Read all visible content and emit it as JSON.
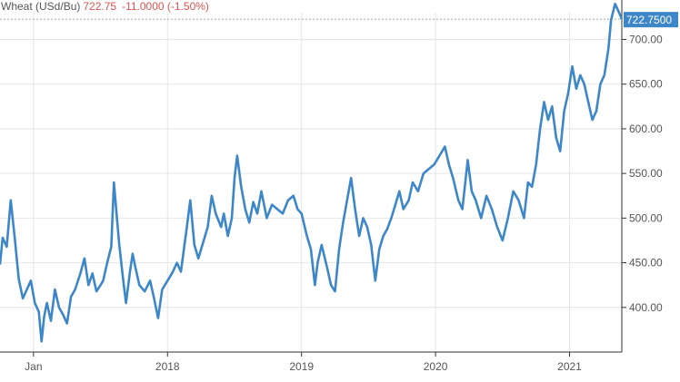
{
  "header": {
    "name": "Wheat (USd/Bu)",
    "price": "722.75",
    "change": "-11.0000 (-1.50%)"
  },
  "colors": {
    "line": "#3d87c9",
    "badge": "#3d87c9",
    "grid": "#e6e6e6",
    "axis": "#333333",
    "change_negative": "#d9534f"
  },
  "chart_data": {
    "type": "line",
    "title": "",
    "xlabel": "",
    "ylabel": "",
    "x_range": [
      2016.75,
      2021.39
    ],
    "ylim": [
      350,
      730
    ],
    "y_ticks": [
      400,
      450,
      500,
      550,
      600,
      650,
      700
    ],
    "y_tick_labels": [
      "400.00",
      "450.00",
      "500.00",
      "550.00",
      "600.00",
      "650.00",
      "700.00"
    ],
    "x_ticks": [
      {
        "x": 2017.0,
        "label": "Jan"
      },
      {
        "x": 2018.0,
        "label": "2018"
      },
      {
        "x": 2019.0,
        "label": "2019"
      },
      {
        "x": 2020.0,
        "label": "2020"
      },
      {
        "x": 2021.0,
        "label": "2021"
      }
    ],
    "last_value_label": "722.7500",
    "grid": true,
    "series": [
      {
        "points": [
          [
            2016.75,
            448
          ],
          [
            2016.77,
            478
          ],
          [
            2016.8,
            468
          ],
          [
            2016.83,
            520
          ],
          [
            2016.86,
            478
          ],
          [
            2016.89,
            432
          ],
          [
            2016.92,
            410
          ],
          [
            2016.95,
            420
          ],
          [
            2016.98,
            430
          ],
          [
            2017.01,
            405
          ],
          [
            2017.04,
            395
          ],
          [
            2017.06,
            362
          ],
          [
            2017.08,
            390
          ],
          [
            2017.1,
            405
          ],
          [
            2017.13,
            385
          ],
          [
            2017.16,
            420
          ],
          [
            2017.19,
            400
          ],
          [
            2017.22,
            392
          ],
          [
            2017.25,
            382
          ],
          [
            2017.28,
            412
          ],
          [
            2017.31,
            420
          ],
          [
            2017.35,
            438
          ],
          [
            2017.38,
            455
          ],
          [
            2017.41,
            425
          ],
          [
            2017.44,
            438
          ],
          [
            2017.47,
            418
          ],
          [
            2017.5,
            425
          ],
          [
            2017.52,
            430
          ],
          [
            2017.55,
            450
          ],
          [
            2017.58,
            468
          ],
          [
            2017.6,
            540
          ],
          [
            2017.62,
            505
          ],
          [
            2017.64,
            470
          ],
          [
            2017.67,
            430
          ],
          [
            2017.69,
            405
          ],
          [
            2017.72,
            440
          ],
          [
            2017.74,
            460
          ],
          [
            2017.76,
            445
          ],
          [
            2017.79,
            425
          ],
          [
            2017.83,
            418
          ],
          [
            2017.87,
            430
          ],
          [
            2017.9,
            410
          ],
          [
            2017.93,
            388
          ],
          [
            2017.96,
            420
          ],
          [
            2018.0,
            430
          ],
          [
            2018.04,
            440
          ],
          [
            2018.07,
            450
          ],
          [
            2018.1,
            440
          ],
          [
            2018.14,
            485
          ],
          [
            2018.17,
            520
          ],
          [
            2018.2,
            470
          ],
          [
            2018.23,
            455
          ],
          [
            2018.27,
            475
          ],
          [
            2018.3,
            490
          ],
          [
            2018.33,
            525
          ],
          [
            2018.36,
            505
          ],
          [
            2018.4,
            490
          ],
          [
            2018.42,
            505
          ],
          [
            2018.45,
            480
          ],
          [
            2018.48,
            500
          ],
          [
            2018.5,
            545
          ],
          [
            2018.52,
            570
          ],
          [
            2018.55,
            535
          ],
          [
            2018.58,
            510
          ],
          [
            2018.61,
            495
          ],
          [
            2018.64,
            518
          ],
          [
            2018.67,
            505
          ],
          [
            2018.7,
            530
          ],
          [
            2018.74,
            500
          ],
          [
            2018.78,
            515
          ],
          [
            2018.82,
            510
          ],
          [
            2018.86,
            505
          ],
          [
            2018.9,
            520
          ],
          [
            2018.94,
            525
          ],
          [
            2018.97,
            510
          ],
          [
            2019.0,
            505
          ],
          [
            2019.04,
            480
          ],
          [
            2019.07,
            465
          ],
          [
            2019.1,
            425
          ],
          [
            2019.12,
            450
          ],
          [
            2019.15,
            470
          ],
          [
            2019.19,
            445
          ],
          [
            2019.22,
            425
          ],
          [
            2019.25,
            418
          ],
          [
            2019.28,
            465
          ],
          [
            2019.31,
            495
          ],
          [
            2019.34,
            520
          ],
          [
            2019.37,
            545
          ],
          [
            2019.4,
            510
          ],
          [
            2019.43,
            480
          ],
          [
            2019.46,
            500
          ],
          [
            2019.49,
            490
          ],
          [
            2019.52,
            470
          ],
          [
            2019.55,
            430
          ],
          [
            2019.58,
            465
          ],
          [
            2019.61,
            480
          ],
          [
            2019.64,
            488
          ],
          [
            2019.67,
            500
          ],
          [
            2019.7,
            515
          ],
          [
            2019.73,
            530
          ],
          [
            2019.76,
            510
          ],
          [
            2019.8,
            520
          ],
          [
            2019.83,
            540
          ],
          [
            2019.87,
            530
          ],
          [
            2019.91,
            550
          ],
          [
            2019.95,
            555
          ],
          [
            2019.99,
            560
          ],
          [
            2020.03,
            570
          ],
          [
            2020.07,
            580
          ],
          [
            2020.1,
            560
          ],
          [
            2020.13,
            545
          ],
          [
            2020.17,
            520
          ],
          [
            2020.2,
            510
          ],
          [
            2020.24,
            565
          ],
          [
            2020.27,
            530
          ],
          [
            2020.3,
            520
          ],
          [
            2020.34,
            500
          ],
          [
            2020.38,
            525
          ],
          [
            2020.42,
            510
          ],
          [
            2020.46,
            490
          ],
          [
            2020.5,
            475
          ],
          [
            2020.54,
            500
          ],
          [
            2020.58,
            530
          ],
          [
            2020.62,
            520
          ],
          [
            2020.66,
            500
          ],
          [
            2020.69,
            540
          ],
          [
            2020.72,
            535
          ],
          [
            2020.75,
            560
          ],
          [
            2020.78,
            600
          ],
          [
            2020.81,
            630
          ],
          [
            2020.84,
            610
          ],
          [
            2020.87,
            625
          ],
          [
            2020.9,
            590
          ],
          [
            2020.93,
            575
          ],
          [
            2020.96,
            620
          ],
          [
            2020.99,
            640
          ],
          [
            2021.02,
            670
          ],
          [
            2021.05,
            645
          ],
          [
            2021.08,
            660
          ],
          [
            2021.11,
            650
          ],
          [
            2021.14,
            630
          ],
          [
            2021.17,
            610
          ],
          [
            2021.2,
            620
          ],
          [
            2021.23,
            650
          ],
          [
            2021.26,
            660
          ],
          [
            2021.29,
            690
          ],
          [
            2021.31,
            722
          ],
          [
            2021.34,
            740
          ],
          [
            2021.37,
            730
          ],
          [
            2021.39,
            722.75
          ]
        ]
      }
    ]
  }
}
